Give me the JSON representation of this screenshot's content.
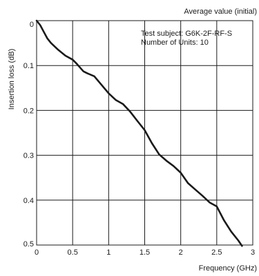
{
  "chart_data": {
    "type": "line",
    "title": "Average value (initial)",
    "xlabel": "Frequency (GHz)",
    "ylabel": "Insertion loss (dB)",
    "xlim": [
      0,
      3
    ],
    "ylim": [
      0,
      0.5
    ],
    "y_inverted": true,
    "grid": true,
    "xticks": [
      0,
      0.5,
      1,
      1.5,
      2,
      2.5,
      3
    ],
    "xtick_labels": [
      "0",
      "0.5",
      "1",
      "1.5",
      "2",
      "2.5",
      "3"
    ],
    "yticks": [
      0,
      0.1,
      0.2,
      0.3,
      0.4,
      0.5
    ],
    "ytick_labels": [
      "0",
      "0.1",
      "0.2",
      "0.3",
      "0.4",
      "0.5"
    ],
    "annotations": [
      "Test subject: G6K-2F-RF-S",
      "Number of Units: 10"
    ],
    "series": [
      {
        "color": "#1a1a1a",
        "x": [
          0,
          0.05,
          0.1,
          0.15,
          0.2,
          0.3,
          0.4,
          0.5,
          0.55,
          0.6,
          0.65,
          0.7,
          0.8,
          0.9,
          1.0,
          1.1,
          1.2,
          1.3,
          1.4,
          1.5,
          1.6,
          1.7,
          1.8,
          1.9,
          2.0,
          2.1,
          2.2,
          2.3,
          2.4,
          2.5,
          2.6,
          2.7,
          2.8,
          2.85
        ],
        "y": [
          0,
          0.01,
          0.025,
          0.04,
          0.05,
          0.065,
          0.078,
          0.087,
          0.095,
          0.104,
          0.113,
          0.117,
          0.124,
          0.143,
          0.162,
          0.177,
          0.186,
          0.203,
          0.224,
          0.244,
          0.273,
          0.298,
          0.312,
          0.324,
          0.339,
          0.362,
          0.376,
          0.39,
          0.405,
          0.414,
          0.445,
          0.47,
          0.49,
          0.502
        ]
      }
    ]
  }
}
